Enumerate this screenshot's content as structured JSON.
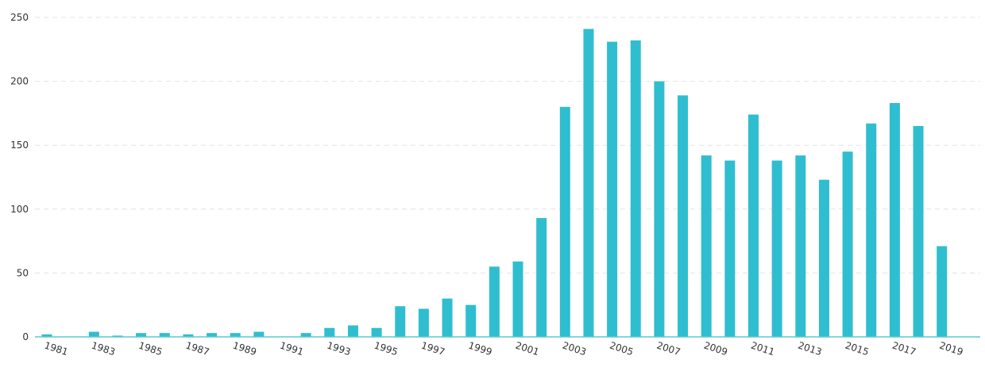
{
  "chart_data": {
    "type": "bar",
    "categories": [
      "1981",
      "1982",
      "1983",
      "1984",
      "1985",
      "1986",
      "1987",
      "1988",
      "1989",
      "1990",
      "1991",
      "1992",
      "1993",
      "1994",
      "1995",
      "1996",
      "1997",
      "1998",
      "1999",
      "2000",
      "2001",
      "2002",
      "2003",
      "2004",
      "2005",
      "2006",
      "2007",
      "2008",
      "2009",
      "2010",
      "2011",
      "2012",
      "2013",
      "2014",
      "2015",
      "2016",
      "2017",
      "2018",
      "2019"
    ],
    "values": [
      2,
      0,
      4,
      1,
      3,
      3,
      2,
      3,
      3,
      4,
      0,
      3,
      7,
      9,
      7,
      24,
      22,
      30,
      25,
      55,
      59,
      93,
      180,
      241,
      231,
      232,
      200,
      189,
      142,
      138,
      174,
      138,
      142,
      123,
      145,
      167,
      183,
      165,
      71
    ],
    "x_tick_labels": [
      "1981",
      "1983",
      "1985",
      "1987",
      "1989",
      "1991",
      "1993",
      "1995",
      "1997",
      "1999",
      "2001",
      "2003",
      "2005",
      "2007",
      "2009",
      "2011",
      "2013",
      "2015",
      "2017",
      "2019"
    ],
    "y_ticks": [
      "0",
      "50",
      "100",
      "150",
      "200",
      "250"
    ],
    "ylim": [
      0,
      250
    ],
    "grid": true,
    "colors": {
      "bar": "#2fbecf",
      "axis": "#5cc7d4",
      "grid": "#e3e3e3"
    }
  }
}
